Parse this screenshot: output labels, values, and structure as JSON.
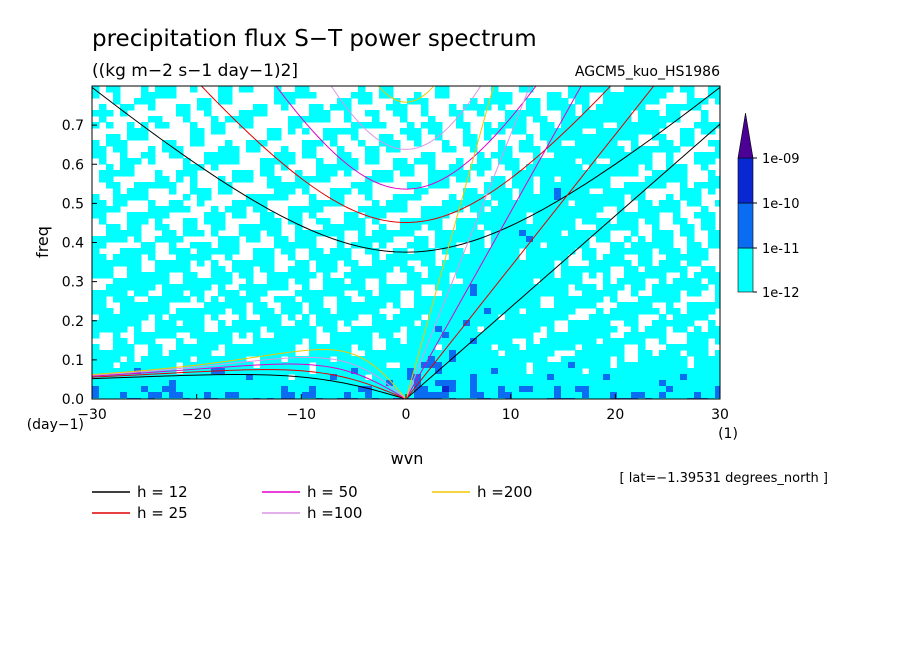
{
  "chart_data": {
    "type": "heatmap",
    "title": "precipitation flux S−T power spectrum",
    "subtitle": "((kg m−2 s−1 day−1)2]",
    "run_label": "AGCM5_kuo_HS1986",
    "xlabel": "wvn",
    "ylabel": "freq",
    "x_unit": "(1)",
    "y_unit": "(day−1)",
    "xlim": [
      -30,
      30
    ],
    "ylim": [
      0,
      0.8
    ],
    "x_ticks": [
      "−30",
      "−20",
      "−10",
      "0",
      "10",
      "20",
      "30"
    ],
    "y_ticks": [
      "0.0",
      "0.1",
      "0.2",
      "0.3",
      "0.4",
      "0.5",
      "0.6",
      "0.7"
    ],
    "colorbar": {
      "labels": [
        "1e-12",
        "1e-11",
        "1e-10",
        "1e-09"
      ],
      "colors": [
        "#00ffff",
        "#0a6cf0",
        "#0a28d2",
        "#4b0096"
      ]
    },
    "dispersion_curves": [
      {
        "name": "h = 12",
        "color": "#000000"
      },
      {
        "name": "h = 25",
        "color": "#e00000"
      },
      {
        "name": "h = 50",
        "color": "#e000c8"
      },
      {
        "name": "h =100",
        "color": "#dc96e6"
      },
      {
        "name": "h =200",
        "color": "#f0c800"
      }
    ],
    "annotation": "[ lat=−1.39531 degrees_north ]"
  }
}
